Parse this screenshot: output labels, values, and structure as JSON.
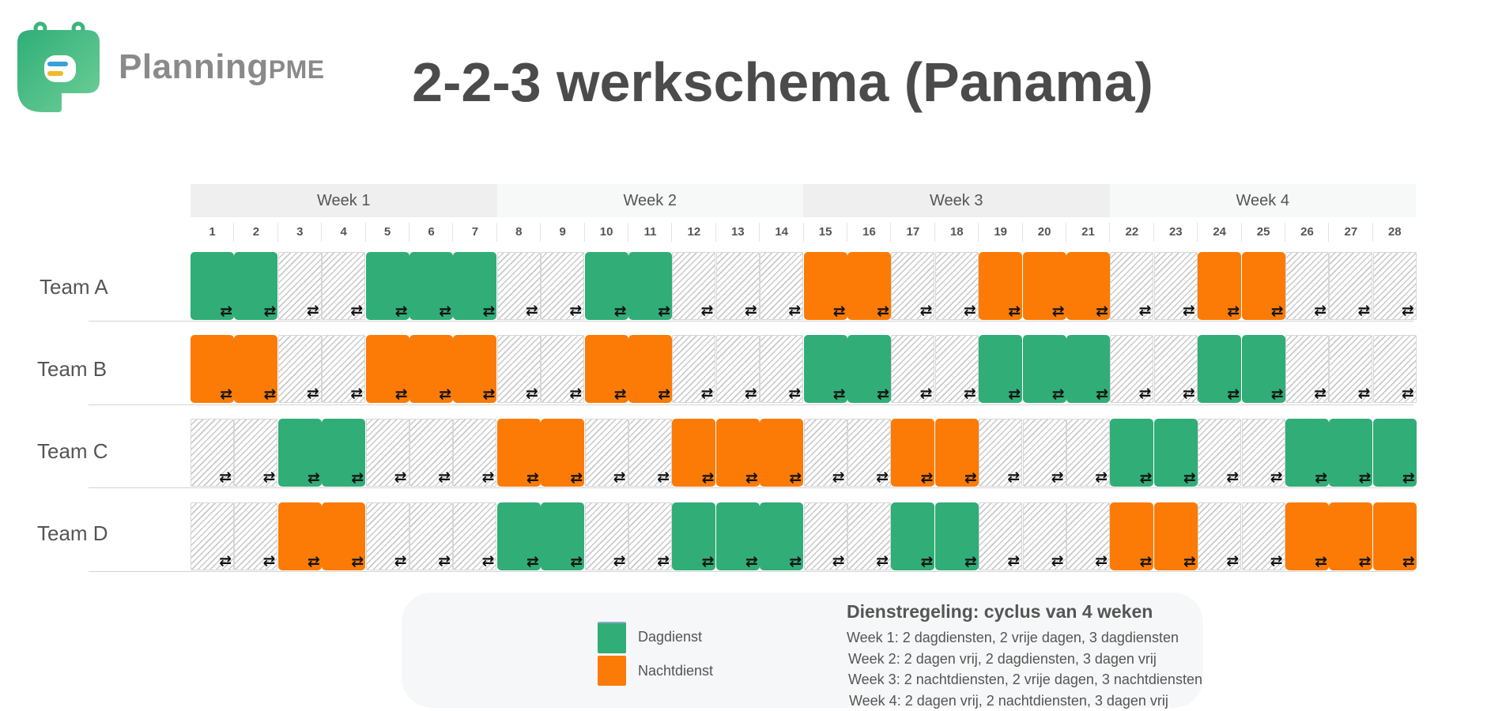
{
  "brand": {
    "name_main": "Planning",
    "name_suffix": "PME"
  },
  "title": "2-2-3 werkschema (Panama)",
  "weeks": [
    "Week 1",
    "Week 2",
    "Week 3",
    "Week 4"
  ],
  "days": [
    "1",
    "2",
    "3",
    "4",
    "5",
    "6",
    "7",
    "8",
    "9",
    "10",
    "11",
    "12",
    "13",
    "14",
    "15",
    "16",
    "17",
    "18",
    "19",
    "20",
    "21",
    "22",
    "23",
    "24",
    "25",
    "26",
    "27",
    "28"
  ],
  "teams": [
    {
      "name": "Team A",
      "pattern": "DDOODDDOODDOOONNOONNNOONNOOO"
    },
    {
      "name": "Team B",
      "pattern": "NNOONNNOONNOOODDOODDDOODDOOO"
    },
    {
      "name": "Team C",
      "pattern": "OODDOOONNOONNNOONNOOODDOODDD"
    },
    {
      "name": "Team D",
      "pattern": "OONNOOODDOODDDOODDOOONNOONNN"
    }
  ],
  "shift_codes": {
    "D": "day",
    "N": "night",
    "O": "off"
  },
  "colors": {
    "day": "#31ad78",
    "night": "#fb7b06",
    "off_hatch": "#c9c9c9"
  },
  "icons": {
    "shift": "repeat-icon"
  },
  "legend": {
    "day_label": "Dagdienst",
    "night_label": "Nachtdienst"
  },
  "schedule": {
    "title": "Dienstregeling: cyclus van 4 weken",
    "lines": [
      "Week 1: 2 dagdiensten, 2 vrije dagen, 3 dagdiensten",
      "Week 2: 2 dagen vrij, 2 dagdiensten, 3 dagen vrij",
      "Week 3: 2 nachtdiensten, 2 vrije dagen, 3 nachtdiensten",
      "Week 4: 2 dagen vrij, 2 nachtdiensten, 3 dagen vrij"
    ]
  }
}
